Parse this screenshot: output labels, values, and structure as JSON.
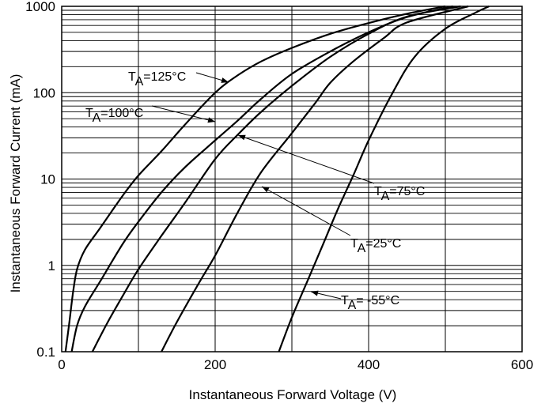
{
  "chart_data": {
    "type": "line",
    "title": "",
    "xlabel": "Instantaneous Forward Voltage (V)",
    "ylabel": "Instantaneous Forward Current (mA)",
    "x_scale": "linear",
    "y_scale": "log",
    "xlim": [
      0,
      600
    ],
    "ylim": [
      0.1,
      1000
    ],
    "x_ticks": [
      "0",
      "200",
      "400",
      "600"
    ],
    "y_ticks": [
      "0.1",
      "1",
      "10",
      "100",
      "1000"
    ],
    "grid": true,
    "legend": "none",
    "series": [
      {
        "name": "125°C",
        "label_main": "T",
        "label_sub": "A",
        "label_rest": "=125°C",
        "points": [
          [
            5,
            0.1
          ],
          [
            10,
            0.22
          ],
          [
            15,
            0.5
          ],
          [
            20,
            0.9
          ],
          [
            30,
            1.5
          ],
          [
            50,
            2.7
          ],
          [
            80,
            6.5
          ],
          [
            100,
            11
          ],
          [
            130,
            21
          ],
          [
            160,
            42
          ],
          [
            200,
            100
          ],
          [
            230,
            160
          ],
          [
            260,
            230
          ],
          [
            300,
            330
          ],
          [
            350,
            480
          ],
          [
            400,
            640
          ],
          [
            450,
            820
          ],
          [
            500,
            1000
          ]
        ]
      },
      {
        "name": "100°C",
        "label_main": "T",
        "label_sub": "A",
        "label_rest": "=100°C",
        "points": [
          [
            13,
            0.1
          ],
          [
            20,
            0.2
          ],
          [
            30,
            0.33
          ],
          [
            50,
            0.65
          ],
          [
            80,
            1.8
          ],
          [
            100,
            3.2
          ],
          [
            130,
            7
          ],
          [
            160,
            13.5
          ],
          [
            200,
            28
          ],
          [
            230,
            48
          ],
          [
            260,
            85
          ],
          [
            300,
            165
          ],
          [
            350,
            300
          ],
          [
            400,
            500
          ],
          [
            450,
            750
          ],
          [
            510,
            1000
          ]
        ]
      },
      {
        "name": "75°C",
        "label_main": "T",
        "label_sub": "A",
        "label_rest": "=75°C",
        "points": [
          [
            40,
            0.1
          ],
          [
            60,
            0.22
          ],
          [
            80,
            0.45
          ],
          [
            100,
            0.9
          ],
          [
            130,
            2.2
          ],
          [
            160,
            5.2
          ],
          [
            200,
            17
          ],
          [
            230,
            33
          ],
          [
            260,
            60
          ],
          [
            300,
            120
          ],
          [
            350,
            260
          ],
          [
            400,
            480
          ],
          [
            450,
            760
          ],
          [
            520,
            1000
          ]
        ]
      },
      {
        "name": "25°C",
        "label_main": "T",
        "label_sub": "A",
        "label_rest": "=25°C",
        "points": [
          [
            130,
            0.1
          ],
          [
            150,
            0.22
          ],
          [
            180,
            0.65
          ],
          [
            200,
            1.3
          ],
          [
            230,
            4.2
          ],
          [
            260,
            12
          ],
          [
            300,
            34
          ],
          [
            330,
            75
          ],
          [
            350,
            130
          ],
          [
            380,
            230
          ],
          [
            420,
            430
          ],
          [
            450,
            650
          ],
          [
            530,
            1000
          ]
        ]
      },
      {
        "name": "-55°C",
        "label_main": "T",
        "label_sub": "A",
        "label_rest": "= -55°C",
        "points": [
          [
            283,
            0.1
          ],
          [
            300,
            0.25
          ],
          [
            320,
            0.65
          ],
          [
            340,
            1.7
          ],
          [
            360,
            4.5
          ],
          [
            380,
            11
          ],
          [
            400,
            28
          ],
          [
            430,
            95
          ],
          [
            460,
            260
          ],
          [
            500,
            550
          ],
          [
            540,
            850
          ],
          [
            557,
            1000
          ]
        ]
      }
    ]
  }
}
